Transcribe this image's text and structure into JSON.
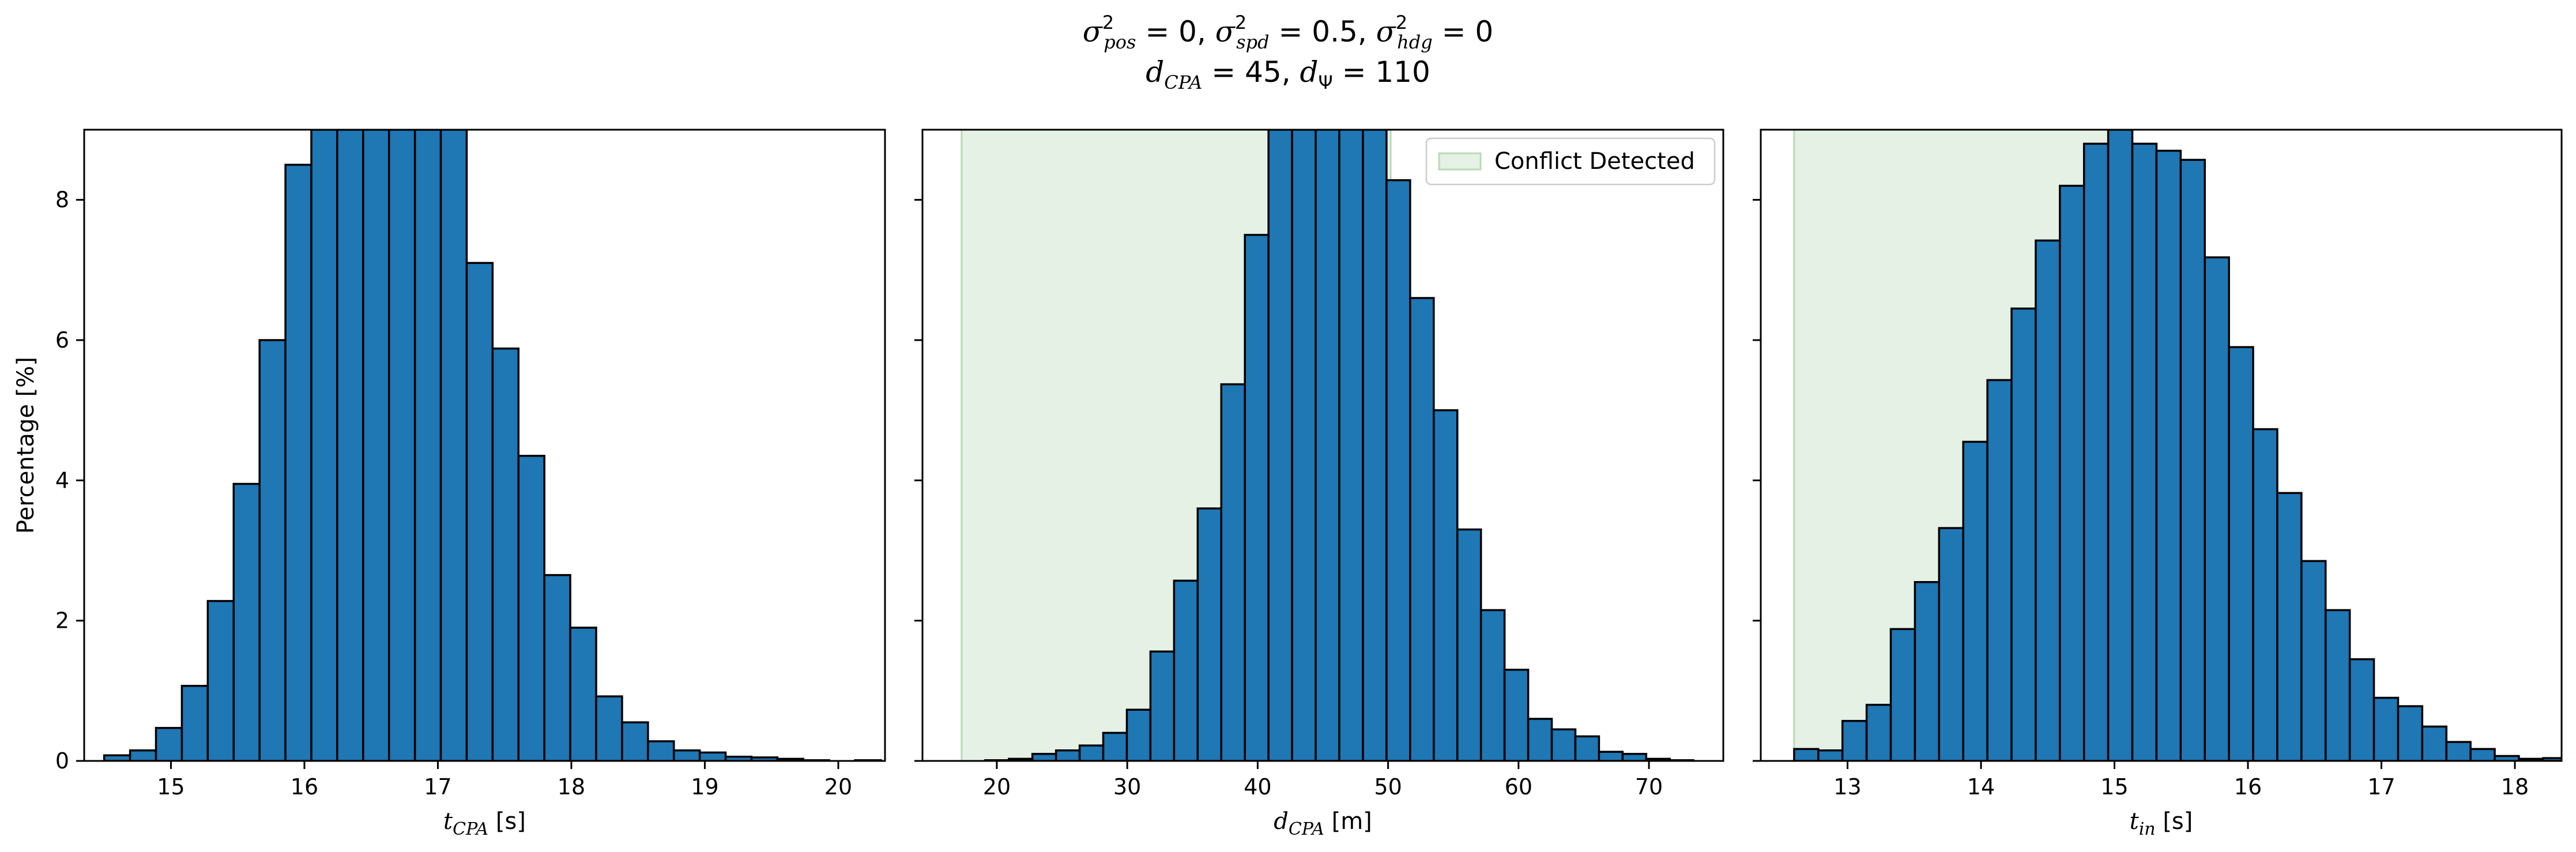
{
  "title": {
    "line1": "σ²pos = 0, σ²spd = 0.5, σ²hdg = 0",
    "line2": "dCPA = 45, dΨ = 110"
  },
  "colors": {
    "bar": "#1f77b4",
    "bar_edge": "#000000",
    "conflict_shade": "#e5f1e5",
    "conflict_edge": "#b6dcb6"
  },
  "legend": {
    "label": "Conflict Detected",
    "placement": "upper right of middle panel"
  },
  "chart_data": [
    {
      "type": "bar",
      "panel": "left",
      "xlabel": "tCPA [s]",
      "xlabel_main": "t",
      "xlabel_sub": "CPA",
      "xlabel_unit": " [s]",
      "ylabel": "Percentage [%]",
      "xlim": [
        14.35,
        20.35
      ],
      "ylim": [
        0,
        9
      ],
      "xticks": [
        15,
        16,
        17,
        18,
        19,
        20
      ],
      "yticks": [
        0,
        2,
        4,
        6,
        8
      ],
      "bin_start": 14.5,
      "bin_width": 0.194,
      "values": [
        0.08,
        0.15,
        0.47,
        1.07,
        2.28,
        3.95,
        6.0,
        8.5,
        9.0,
        9.0,
        9.0,
        9.0,
        9.0,
        9.0,
        7.1,
        5.88,
        4.35,
        2.65,
        1.9,
        0.92,
        0.55,
        0.28,
        0.15,
        0.12,
        0.06,
        0.05,
        0.03,
        0.01,
        0.0,
        0.01,
        0.0,
        0.02
      ],
      "conflict_region": null
    },
    {
      "type": "bar",
      "panel": "middle",
      "xlabel": "dCPA [m]",
      "xlabel_main": "d",
      "xlabel_sub": "CPA",
      "xlabel_unit": " [m]",
      "ylabel": "",
      "xlim": [
        14.3,
        75.7
      ],
      "ylim": [
        0,
        9
      ],
      "xticks": [
        20,
        30,
        40,
        50,
        60,
        70
      ],
      "yticks": [
        0,
        2,
        4,
        6,
        8
      ],
      "bin_start": 17.3,
      "bin_width": 1.81,
      "values": [
        0.0,
        0.01,
        0.03,
        0.1,
        0.15,
        0.22,
        0.4,
        0.73,
        1.56,
        2.57,
        3.6,
        5.37,
        7.5,
        9.0,
        9.0,
        9.0,
        9.0,
        9.0,
        8.28,
        6.6,
        5.0,
        3.3,
        2.15,
        1.3,
        0.6,
        0.45,
        0.35,
        0.13,
        0.1,
        0.03,
        0.01
      ],
      "conflict_region": [
        17.3,
        50.2
      ]
    },
    {
      "type": "bar",
      "panel": "right",
      "xlabel": "tin [s]",
      "xlabel_main": "t",
      "xlabel_sub": "in",
      "xlabel_unit": " [s]",
      "ylabel": "",
      "xlim": [
        12.35,
        18.35
      ],
      "ylim": [
        0,
        9
      ],
      "xticks": [
        13,
        14,
        15,
        16,
        17,
        18
      ],
      "yticks": [
        0,
        2,
        4,
        6,
        8
      ],
      "bin_start": 12.6,
      "bin_width": 0.181,
      "values": [
        0.17,
        0.15,
        0.57,
        0.8,
        1.88,
        2.55,
        3.32,
        4.55,
        5.43,
        6.45,
        7.42,
        8.2,
        8.8,
        9.0,
        8.8,
        8.7,
        8.57,
        7.18,
        5.9,
        4.73,
        3.82,
        2.85,
        2.15,
        1.45,
        0.9,
        0.78,
        0.49,
        0.27,
        0.17,
        0.07,
        0.03,
        0.04
      ],
      "conflict_region": [
        12.6,
        15.1
      ]
    }
  ]
}
